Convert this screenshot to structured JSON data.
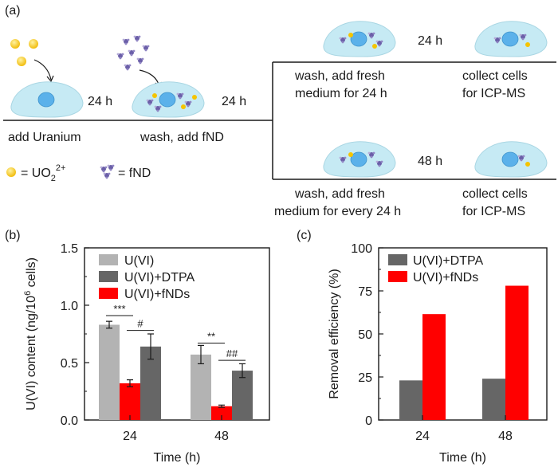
{
  "panels": {
    "a": "(a)",
    "b": "(b)",
    "c": "(c)"
  },
  "schematic": {
    "add_uranium": "add Uranium",
    "wash_add_fnd": "wash, add fND",
    "time_24h": "24 h",
    "time_48h": "48 h",
    "wash_fresh_24_line1": "wash, add fresh",
    "wash_fresh_24_line2": "medium for 24 h",
    "wash_fresh_every_line1": "wash, add fresh",
    "wash_fresh_every_line2": "medium for every 24 h",
    "collect_line1": "collect cells",
    "collect_line2": "for ICP-MS",
    "legend_uo2_prefix": "= UO",
    "legend_uo2_sub": "2",
    "legend_uo2_sup": "2+",
    "legend_fnd": "= fND",
    "colors": {
      "uranium": "#f5c400",
      "fnd": "#6b5fa8",
      "cell": "#c6eaf4",
      "nucleus": "#5bb1ea"
    }
  },
  "chart_data": [
    {
      "type": "bar",
      "panel": "(b)",
      "categories": [
        "24",
        "48"
      ],
      "series": [
        {
          "name": "U(VI)",
          "color": "#b3b3b3",
          "values": [
            0.83,
            0.57
          ],
          "errors": [
            0.03,
            0.08
          ]
        },
        {
          "name": "U(VI)+fNDs",
          "color": "#ff0000",
          "values": [
            0.32,
            0.12
          ],
          "errors": [
            0.03,
            0.01
          ]
        },
        {
          "name": "U(VI)+DTPA",
          "color": "#666666",
          "values": [
            0.64,
            0.43
          ],
          "errors": [
            0.11,
            0.06
          ]
        }
      ],
      "legend_order": [
        "U(VI)",
        "U(VI)+DTPA",
        "U(VI)+fNDs"
      ],
      "legend_placement": "top-right",
      "significance": [
        {
          "category": "24",
          "label": "***"
        },
        {
          "category": "24",
          "label": "#"
        },
        {
          "category": "48",
          "label": "**"
        },
        {
          "category": "48",
          "label": "##"
        }
      ],
      "xlabel": "Time (h)",
      "ylabel_main": "U(VI) content (ng/10",
      "ylabel_sup": "6",
      "ylabel_end": " cells)",
      "ylim": [
        0,
        1.5
      ],
      "yticks": [
        "0.0",
        "0.5",
        "1.0",
        "1.5"
      ]
    },
    {
      "type": "bar",
      "panel": "(c)",
      "categories": [
        "24",
        "48"
      ],
      "series": [
        {
          "name": "U(VI)+DTPA",
          "color": "#666666",
          "values": [
            23,
            24
          ]
        },
        {
          "name": "U(VI)+fNDs",
          "color": "#ff0000",
          "values": [
            61.5,
            78
          ]
        }
      ],
      "legend_placement": "top-left",
      "xlabel": "Time (h)",
      "ylabel": "Removal efficiency (%)",
      "ylim": [
        0,
        100
      ],
      "yticks": [
        "0",
        "25",
        "50",
        "75",
        "100"
      ]
    }
  ]
}
